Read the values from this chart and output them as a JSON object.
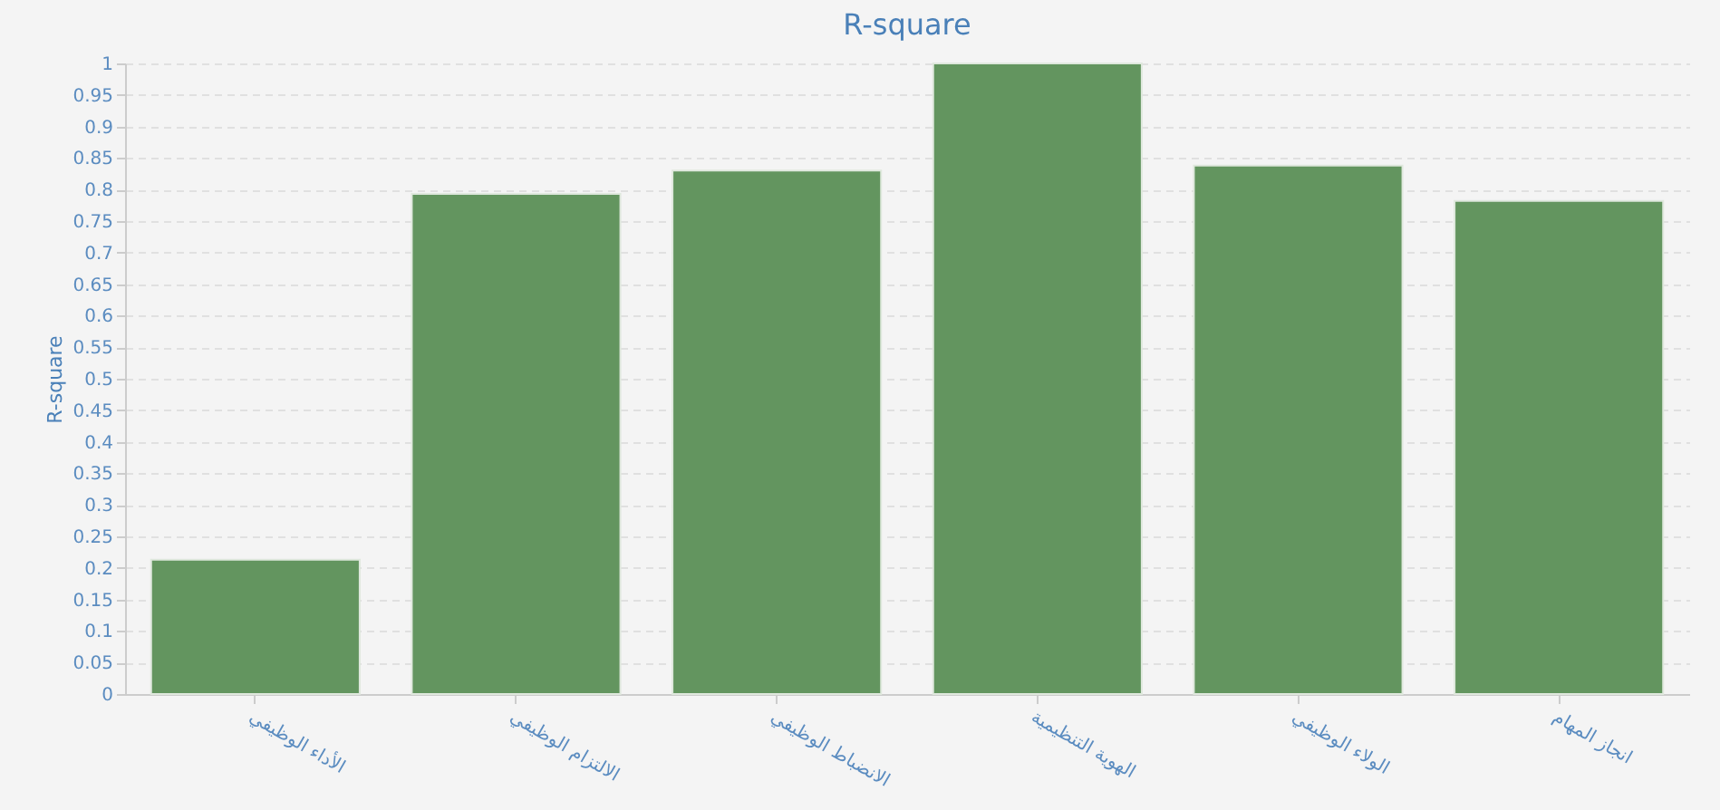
{
  "chart_data": {
    "type": "bar",
    "title": "R-square",
    "ylabel": "R-square",
    "categories": [
      "الأداء الوظيفي",
      "الالتزام الوظيفي",
      "الانضباط الوظيفي",
      "الهوية التنظيمية",
      "الولاء الوظيفي",
      "انجاز المهام"
    ],
    "values": [
      0.213,
      0.793,
      0.83,
      1,
      0.838,
      0.782
    ],
    "color": "#63955f",
    "ylim": [
      0,
      1
    ],
    "yticks": [
      0,
      0.05,
      0.1,
      0.15,
      0.2,
      0.25,
      0.3,
      0.35,
      0.4,
      0.45,
      0.5,
      0.55,
      0.6,
      0.65,
      0.7,
      0.75,
      0.8,
      0.85,
      0.9,
      0.95,
      1
    ],
    "grid": "y"
  }
}
